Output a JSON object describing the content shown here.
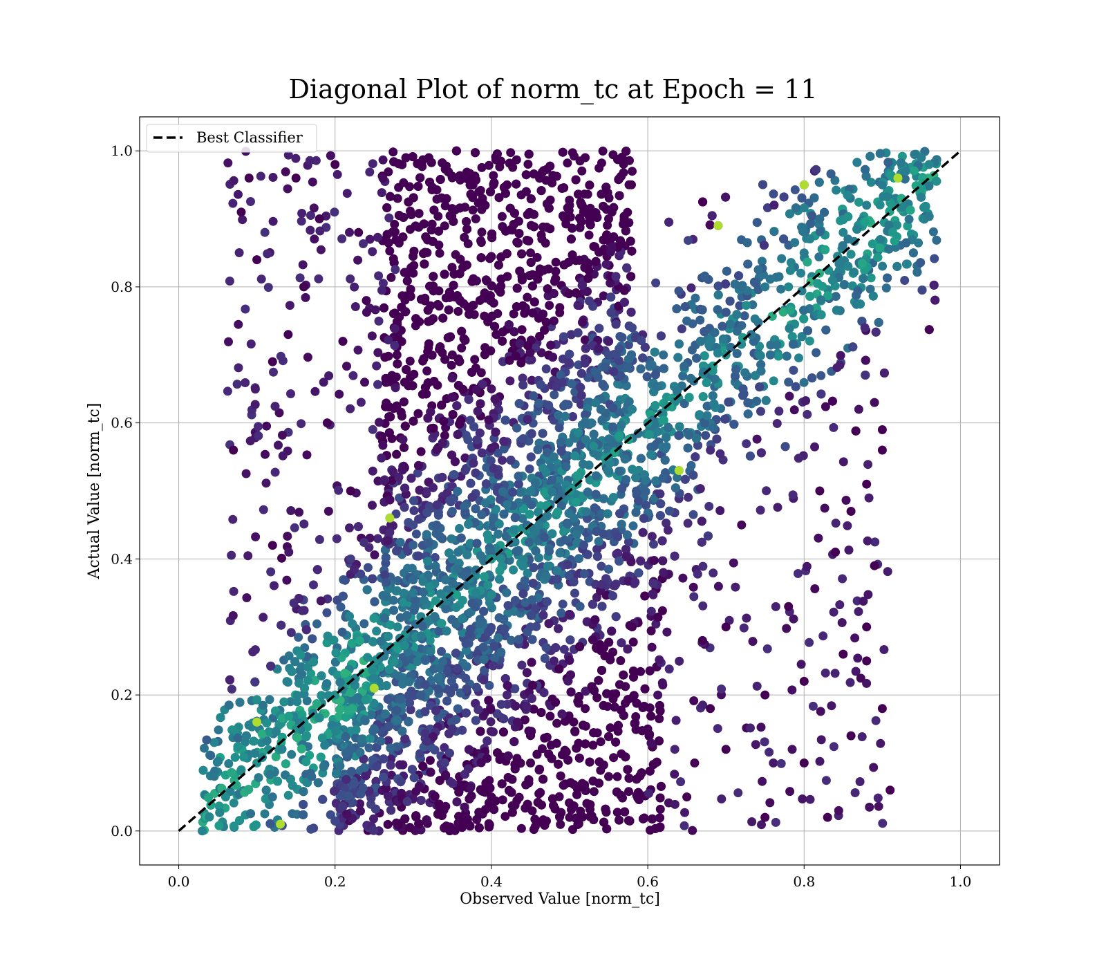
{
  "chart_data": {
    "type": "scatter",
    "title": "Diagonal Plot of norm_tc at Epoch = 11",
    "xlabel": "Observed Value [norm_tc]",
    "ylabel": "Actual Value [norm_tc]",
    "xlim": [
      -0.05,
      1.05
    ],
    "ylim": [
      -0.05,
      1.05
    ],
    "x_ticks": [
      0.0,
      0.2,
      0.4,
      0.6,
      0.8,
      1.0
    ],
    "y_ticks": [
      0.0,
      0.2,
      0.4,
      0.6,
      0.8,
      1.0
    ],
    "x_tick_labels": [
      "0.0",
      "0.2",
      "0.4",
      "0.6",
      "0.8",
      "1.0"
    ],
    "y_tick_labels": [
      "0.0",
      "0.2",
      "0.4",
      "0.6",
      "0.8",
      "1.0"
    ],
    "grid": true,
    "legend": {
      "position": "top-left",
      "entries": [
        "Best Classifier"
      ]
    },
    "reference_line": {
      "name": "Best Classifier",
      "x": [
        0.0,
        1.0
      ],
      "y": [
        0.0,
        1.0
      ],
      "style": "dashed",
      "color": "#000000"
    },
    "colormap": "viridis",
    "series_color_description": "points colored by density using the viridis colormap; dense diagonal region is teal/green, off-diagonal regions are dark purple",
    "points": [
      [
        0.03,
        0.0
      ],
      [
        0.06,
        0.05
      ],
      [
        0.1,
        0.1
      ],
      [
        0.12,
        0.05
      ],
      [
        0.15,
        0.15
      ],
      [
        0.17,
        0.08
      ],
      [
        0.2,
        0.2
      ],
      [
        0.22,
        0.12
      ],
      [
        0.25,
        0.25
      ],
      [
        0.25,
        0.15
      ],
      [
        0.28,
        0.3
      ],
      [
        0.3,
        0.35
      ],
      [
        0.3,
        0.45
      ],
      [
        0.33,
        0.45
      ],
      [
        0.35,
        0.4
      ],
      [
        0.38,
        0.35
      ],
      [
        0.4,
        0.4
      ],
      [
        0.42,
        0.48
      ],
      [
        0.45,
        0.5
      ],
      [
        0.45,
        0.3
      ],
      [
        0.48,
        0.55
      ],
      [
        0.5,
        0.5
      ],
      [
        0.52,
        0.6
      ],
      [
        0.55,
        0.55
      ],
      [
        0.55,
        0.7
      ],
      [
        0.58,
        0.62
      ],
      [
        0.6,
        0.6
      ],
      [
        0.62,
        0.7
      ],
      [
        0.65,
        0.75
      ],
      [
        0.68,
        0.72
      ],
      [
        0.7,
        0.7
      ],
      [
        0.72,
        0.8
      ],
      [
        0.75,
        0.8
      ],
      [
        0.78,
        0.8
      ],
      [
        0.8,
        0.85
      ],
      [
        0.82,
        0.9
      ],
      [
        0.85,
        0.88
      ],
      [
        0.88,
        0.92
      ],
      [
        0.9,
        0.95
      ],
      [
        0.93,
        0.97
      ],
      [
        0.95,
        0.99
      ],
      [
        0.96,
        0.98
      ],
      [
        0.1,
        0.16
      ],
      [
        0.25,
        0.21
      ],
      [
        0.22,
        0.4
      ],
      [
        0.27,
        0.46
      ],
      [
        0.35,
        0.47
      ],
      [
        0.58,
        0.74
      ],
      [
        0.64,
        0.53
      ],
      [
        0.69,
        0.89
      ],
      [
        0.8,
        0.95
      ],
      [
        0.92,
        0.96
      ],
      [
        0.78,
        0.66
      ],
      [
        0.13,
        0.01
      ],
      [
        0.08,
        0.09
      ],
      [
        0.07,
        0.56
      ],
      [
        0.08,
        0.91
      ],
      [
        0.09,
        0.96
      ],
      [
        0.1,
        0.84
      ],
      [
        0.12,
        0.69
      ],
      [
        0.12,
        0.42
      ],
      [
        0.14,
        0.73
      ],
      [
        0.15,
        0.96
      ],
      [
        0.16,
        0.8
      ],
      [
        0.18,
        0.9
      ],
      [
        0.19,
        0.6
      ],
      [
        0.2,
        0.98
      ],
      [
        0.21,
        0.72
      ],
      [
        0.22,
        0.5
      ],
      [
        0.23,
        0.88
      ],
      [
        0.24,
        0.78
      ],
      [
        0.26,
        0.58
      ],
      [
        0.28,
        0.93
      ],
      [
        0.3,
        0.82
      ],
      [
        0.32,
        0.99
      ],
      [
        0.35,
        0.7
      ],
      [
        0.38,
        0.9
      ],
      [
        0.4,
        0.65
      ],
      [
        0.42,
        0.95
      ],
      [
        0.45,
        0.85
      ],
      [
        0.48,
        0.75
      ],
      [
        0.5,
        0.92
      ],
      [
        0.52,
        0.99
      ],
      [
        0.55,
        0.9
      ],
      [
        0.58,
        0.97
      ],
      [
        0.35,
        0.15
      ],
      [
        0.4,
        0.05
      ],
      [
        0.42,
        0.2
      ],
      [
        0.45,
        0.1
      ],
      [
        0.48,
        0.25
      ],
      [
        0.5,
        0.02
      ],
      [
        0.52,
        0.18
      ],
      [
        0.55,
        0.08
      ],
      [
        0.58,
        0.3
      ],
      [
        0.6,
        0.15
      ],
      [
        0.62,
        0.38
      ],
      [
        0.65,
        0.05
      ],
      [
        0.67,
        0.28
      ],
      [
        0.7,
        0.12
      ],
      [
        0.72,
        0.45
      ],
      [
        0.75,
        0.2
      ],
      [
        0.78,
        0.33
      ],
      [
        0.8,
        0.1
      ],
      [
        0.82,
        0.5
      ],
      [
        0.84,
        0.41
      ],
      [
        0.86,
        0.47
      ],
      [
        0.88,
        0.51
      ],
      [
        0.89,
        0.39
      ],
      [
        0.9,
        0.59
      ],
      [
        0.9,
        0.56
      ],
      [
        0.88,
        0.3
      ],
      [
        0.88,
        0.25
      ],
      [
        0.9,
        0.18
      ],
      [
        0.91,
        0.06
      ],
      [
        0.86,
        0.14
      ],
      [
        0.85,
        0.26
      ],
      [
        0.87,
        0.62
      ],
      [
        0.89,
        0.63
      ],
      [
        0.83,
        0.02
      ],
      [
        0.8,
        0.22
      ],
      [
        0.75,
        0.02
      ],
      [
        0.7,
        0.3
      ],
      [
        0.68,
        0.18
      ],
      [
        0.66,
        0.1
      ]
    ]
  }
}
